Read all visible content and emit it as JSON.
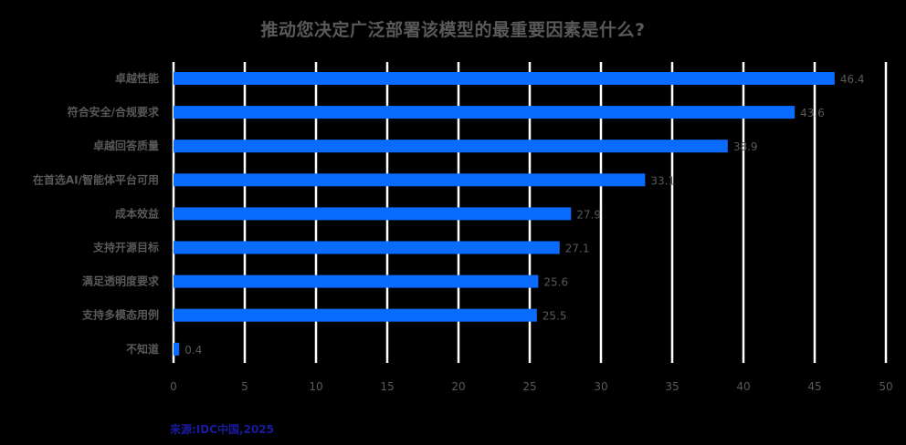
{
  "chart_data": {
    "type": "bar",
    "orientation": "horizontal",
    "title": "推动您决定广泛部署该模型的最重要因素是什么?",
    "categories": [
      "卓越性能",
      "符合安全/合规要求",
      "卓越回答质量",
      "在首选AI/智能体平台可用",
      "成本效益",
      "支持开源目标",
      "满足透明度要求",
      "支持多模态用例",
      "不知道"
    ],
    "values": [
      46.4,
      43.6,
      38.9,
      33.1,
      27.9,
      27.1,
      25.6,
      25.5,
      0.4
    ],
    "value_labels": [
      "46.4",
      "43.6",
      "38.9",
      "33.1",
      "27.9",
      "27.1",
      "25.6",
      "25.5",
      "0.4"
    ],
    "xlim": [
      0,
      50
    ],
    "xticks": [
      0,
      5,
      10,
      15,
      20,
      25,
      30,
      35,
      40,
      45,
      50
    ],
    "xlabel": "",
    "ylabel": "",
    "grid": "vertical",
    "legend": "none",
    "bar_color": "#0a6cff",
    "gridline_color": "#ffffff",
    "text_color": "#595959"
  },
  "source": "来源:IDC中国,2025"
}
